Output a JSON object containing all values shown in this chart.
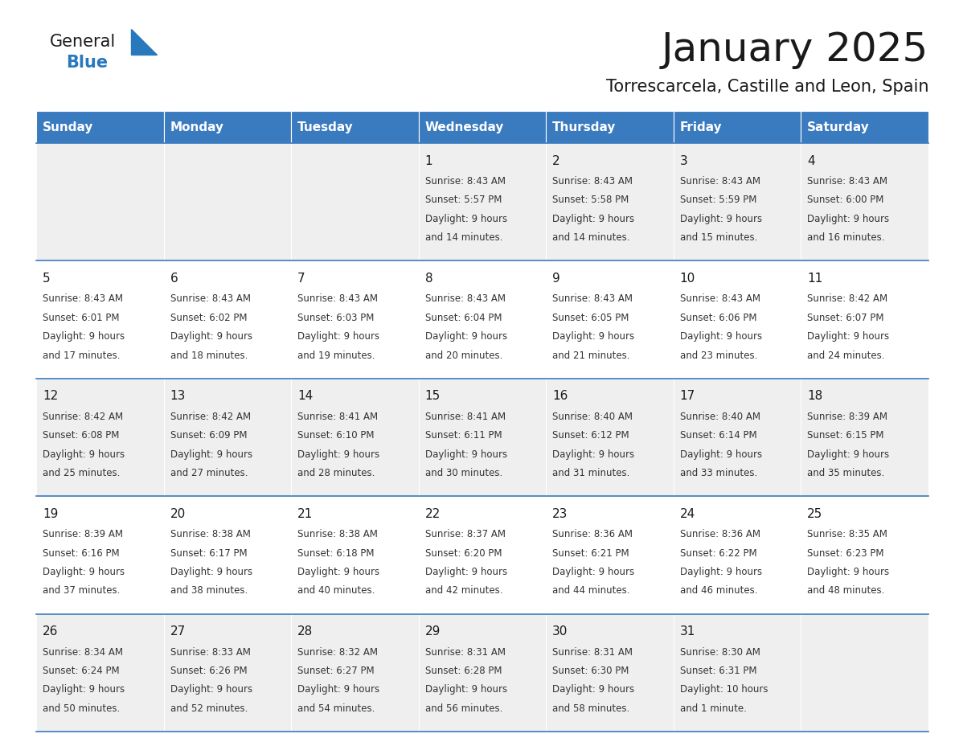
{
  "title": "January 2025",
  "subtitle": "Torrescarcela, Castille and Leon, Spain",
  "days_of_week": [
    "Sunday",
    "Monday",
    "Tuesday",
    "Wednesday",
    "Thursday",
    "Friday",
    "Saturday"
  ],
  "header_bg": "#3a7abf",
  "header_text": "#ffffff",
  "cell_bg_odd": "#efefef",
  "cell_bg_even": "#ffffff",
  "cell_text": "#333333",
  "day_num_color": "#1a1a1a",
  "grid_color": "#3a7abf",
  "title_color": "#1a1a1a",
  "subtitle_color": "#1a1a1a",
  "logo_general_color": "#1a1a1a",
  "logo_blue_color": "#2878be",
  "calendar_data": [
    [
      null,
      null,
      null,
      {
        "day": 1,
        "sunrise": "8:43 AM",
        "sunset": "5:57 PM",
        "daylight": "9 hours",
        "daylight2": "and 14 minutes."
      },
      {
        "day": 2,
        "sunrise": "8:43 AM",
        "sunset": "5:58 PM",
        "daylight": "9 hours",
        "daylight2": "and 14 minutes."
      },
      {
        "day": 3,
        "sunrise": "8:43 AM",
        "sunset": "5:59 PM",
        "daylight": "9 hours",
        "daylight2": "and 15 minutes."
      },
      {
        "day": 4,
        "sunrise": "8:43 AM",
        "sunset": "6:00 PM",
        "daylight": "9 hours",
        "daylight2": "and 16 minutes."
      }
    ],
    [
      {
        "day": 5,
        "sunrise": "8:43 AM",
        "sunset": "6:01 PM",
        "daylight": "9 hours",
        "daylight2": "and 17 minutes."
      },
      {
        "day": 6,
        "sunrise": "8:43 AM",
        "sunset": "6:02 PM",
        "daylight": "9 hours",
        "daylight2": "and 18 minutes."
      },
      {
        "day": 7,
        "sunrise": "8:43 AM",
        "sunset": "6:03 PM",
        "daylight": "9 hours",
        "daylight2": "and 19 minutes."
      },
      {
        "day": 8,
        "sunrise": "8:43 AM",
        "sunset": "6:04 PM",
        "daylight": "9 hours",
        "daylight2": "and 20 minutes."
      },
      {
        "day": 9,
        "sunrise": "8:43 AM",
        "sunset": "6:05 PM",
        "daylight": "9 hours",
        "daylight2": "and 21 minutes."
      },
      {
        "day": 10,
        "sunrise": "8:43 AM",
        "sunset": "6:06 PM",
        "daylight": "9 hours",
        "daylight2": "and 23 minutes."
      },
      {
        "day": 11,
        "sunrise": "8:42 AM",
        "sunset": "6:07 PM",
        "daylight": "9 hours",
        "daylight2": "and 24 minutes."
      }
    ],
    [
      {
        "day": 12,
        "sunrise": "8:42 AM",
        "sunset": "6:08 PM",
        "daylight": "9 hours",
        "daylight2": "and 25 minutes."
      },
      {
        "day": 13,
        "sunrise": "8:42 AM",
        "sunset": "6:09 PM",
        "daylight": "9 hours",
        "daylight2": "and 27 minutes."
      },
      {
        "day": 14,
        "sunrise": "8:41 AM",
        "sunset": "6:10 PM",
        "daylight": "9 hours",
        "daylight2": "and 28 minutes."
      },
      {
        "day": 15,
        "sunrise": "8:41 AM",
        "sunset": "6:11 PM",
        "daylight": "9 hours",
        "daylight2": "and 30 minutes."
      },
      {
        "day": 16,
        "sunrise": "8:40 AM",
        "sunset": "6:12 PM",
        "daylight": "9 hours",
        "daylight2": "and 31 minutes."
      },
      {
        "day": 17,
        "sunrise": "8:40 AM",
        "sunset": "6:14 PM",
        "daylight": "9 hours",
        "daylight2": "and 33 minutes."
      },
      {
        "day": 18,
        "sunrise": "8:39 AM",
        "sunset": "6:15 PM",
        "daylight": "9 hours",
        "daylight2": "and 35 minutes."
      }
    ],
    [
      {
        "day": 19,
        "sunrise": "8:39 AM",
        "sunset": "6:16 PM",
        "daylight": "9 hours",
        "daylight2": "and 37 minutes."
      },
      {
        "day": 20,
        "sunrise": "8:38 AM",
        "sunset": "6:17 PM",
        "daylight": "9 hours",
        "daylight2": "and 38 minutes."
      },
      {
        "day": 21,
        "sunrise": "8:38 AM",
        "sunset": "6:18 PM",
        "daylight": "9 hours",
        "daylight2": "and 40 minutes."
      },
      {
        "day": 22,
        "sunrise": "8:37 AM",
        "sunset": "6:20 PM",
        "daylight": "9 hours",
        "daylight2": "and 42 minutes."
      },
      {
        "day": 23,
        "sunrise": "8:36 AM",
        "sunset": "6:21 PM",
        "daylight": "9 hours",
        "daylight2": "and 44 minutes."
      },
      {
        "day": 24,
        "sunrise": "8:36 AM",
        "sunset": "6:22 PM",
        "daylight": "9 hours",
        "daylight2": "and 46 minutes."
      },
      {
        "day": 25,
        "sunrise": "8:35 AM",
        "sunset": "6:23 PM",
        "daylight": "9 hours",
        "daylight2": "and 48 minutes."
      }
    ],
    [
      {
        "day": 26,
        "sunrise": "8:34 AM",
        "sunset": "6:24 PM",
        "daylight": "9 hours",
        "daylight2": "and 50 minutes."
      },
      {
        "day": 27,
        "sunrise": "8:33 AM",
        "sunset": "6:26 PM",
        "daylight": "9 hours",
        "daylight2": "and 52 minutes."
      },
      {
        "day": 28,
        "sunrise": "8:32 AM",
        "sunset": "6:27 PM",
        "daylight": "9 hours",
        "daylight2": "and 54 minutes."
      },
      {
        "day": 29,
        "sunrise": "8:31 AM",
        "sunset": "6:28 PM",
        "daylight": "9 hours",
        "daylight2": "and 56 minutes."
      },
      {
        "day": 30,
        "sunrise": "8:31 AM",
        "sunset": "6:30 PM",
        "daylight": "9 hours",
        "daylight2": "and 58 minutes."
      },
      {
        "day": 31,
        "sunrise": "8:30 AM",
        "sunset": "6:31 PM",
        "daylight": "10 hours",
        "daylight2": "and 1 minute."
      },
      null
    ]
  ]
}
